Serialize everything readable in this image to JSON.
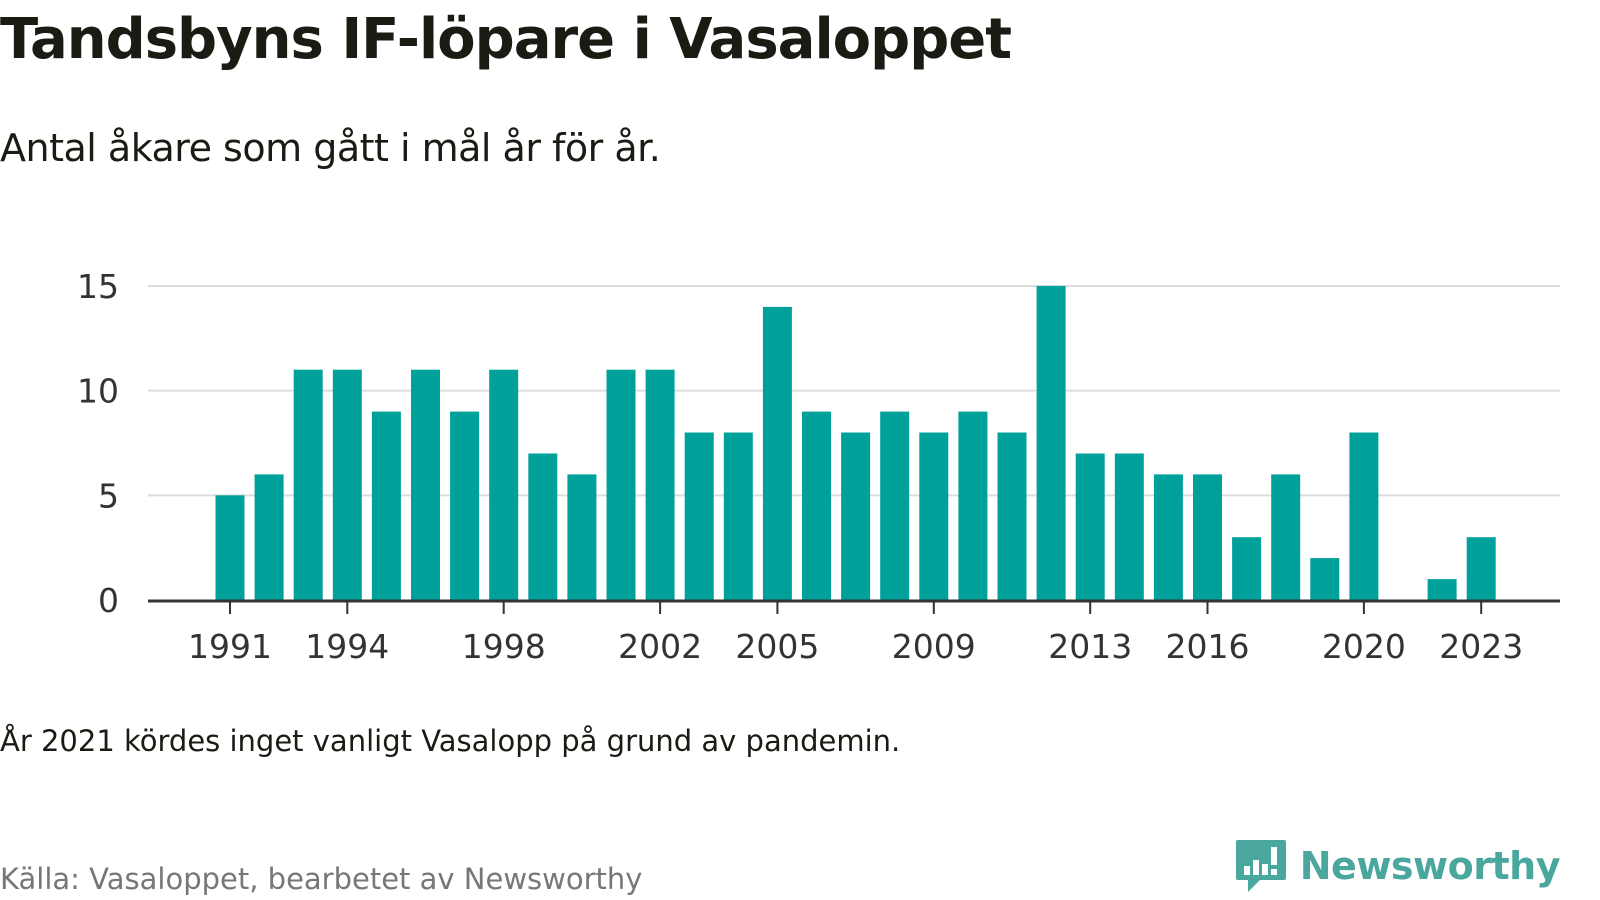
{
  "title": "Tandsbyns IF-löpare i Vasaloppet",
  "subtitle": "Antal åkare som gått i mål år för år.",
  "note": "År 2021 kördes inget vanligt Vasalopp på grund av pandemin.",
  "source": "Källa: Vasaloppet, bearbetet av Newsworthy",
  "logo": {
    "text": "Newsworthy",
    "icon": "newsworthy-bar-chart-speech-bubble-icon"
  },
  "colors": {
    "bar": "#00a19a",
    "grid": "#dddddd",
    "axis": "#333333",
    "logo": "#4aa79e"
  },
  "chart_data": {
    "type": "bar",
    "x": [
      1991,
      1992,
      1993,
      1994,
      1995,
      1996,
      1997,
      1998,
      1999,
      2000,
      2001,
      2002,
      2003,
      2004,
      2005,
      2006,
      2007,
      2008,
      2009,
      2010,
      2011,
      2012,
      2013,
      2014,
      2015,
      2016,
      2017,
      2018,
      2019,
      2020,
      2021,
      2022,
      2023
    ],
    "values": [
      5,
      6,
      11,
      11,
      9,
      11,
      9,
      11,
      7,
      6,
      11,
      11,
      8,
      8,
      14,
      9,
      8,
      9,
      8,
      9,
      8,
      15,
      7,
      7,
      6,
      6,
      3,
      6,
      2,
      8,
      null,
      1,
      3
    ],
    "x_tick_labels": [
      "1991",
      "1994",
      "1998",
      "2002",
      "2005",
      "2009",
      "2013",
      "2016",
      "2020",
      "2023"
    ],
    "y_ticks": [
      0,
      5,
      10,
      15
    ],
    "ylim": [
      0,
      15
    ],
    "xlabel": "",
    "ylabel": "",
    "grid": true,
    "legend": false
  }
}
